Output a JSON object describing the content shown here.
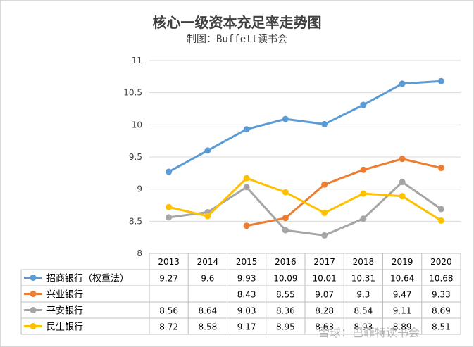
{
  "title": "核心一级资本充足率走势图",
  "subtitle": "制图：Buffett读书会",
  "watermark": "雪球：巴菲特读书会",
  "chart_data": {
    "type": "line",
    "title": "核心一级资本充足率走势图",
    "subtitle": "制图：Buffett读书会",
    "categories": [
      "2013",
      "2014",
      "2015",
      "2016",
      "2017",
      "2018",
      "2019",
      "2020"
    ],
    "ylim": [
      8,
      11
    ],
    "yticks": [
      "8",
      "8.5",
      "9",
      "9.5",
      "10",
      "10.5",
      "11"
    ],
    "grid": true,
    "legend_position": "bottom (data table)",
    "series": [
      {
        "name": "招商银行（权重法）",
        "color": "#5b9bd5",
        "values": [
          9.27,
          9.6,
          9.93,
          10.09,
          10.01,
          10.31,
          10.64,
          10.68
        ],
        "labels": [
          "9.27",
          "9.6",
          "9.93",
          "10.09",
          "10.01",
          "10.31",
          "10.64",
          "10.68"
        ]
      },
      {
        "name": "兴业银行",
        "color": "#ed7d31",
        "values": [
          null,
          null,
          8.43,
          8.55,
          9.07,
          9.3,
          9.47,
          9.33
        ],
        "labels": [
          "",
          "",
          "8.43",
          "8.55",
          "9.07",
          "9.3",
          "9.47",
          "9.33"
        ]
      },
      {
        "name": "平安银行",
        "color": "#a5a5a5",
        "values": [
          8.56,
          8.64,
          9.03,
          8.36,
          8.28,
          8.54,
          9.11,
          8.69
        ],
        "labels": [
          "8.56",
          "8.64",
          "9.03",
          "8.36",
          "8.28",
          "8.54",
          "9.11",
          "8.69"
        ]
      },
      {
        "name": "民生银行",
        "color": "#ffc000",
        "values": [
          8.72,
          8.58,
          9.17,
          8.95,
          8.63,
          8.93,
          8.89,
          8.51
        ],
        "labels": [
          "8.72",
          "8.58",
          "9.17",
          "8.95",
          "8.63",
          "8.93",
          "8.89",
          "8.51"
        ]
      }
    ]
  }
}
